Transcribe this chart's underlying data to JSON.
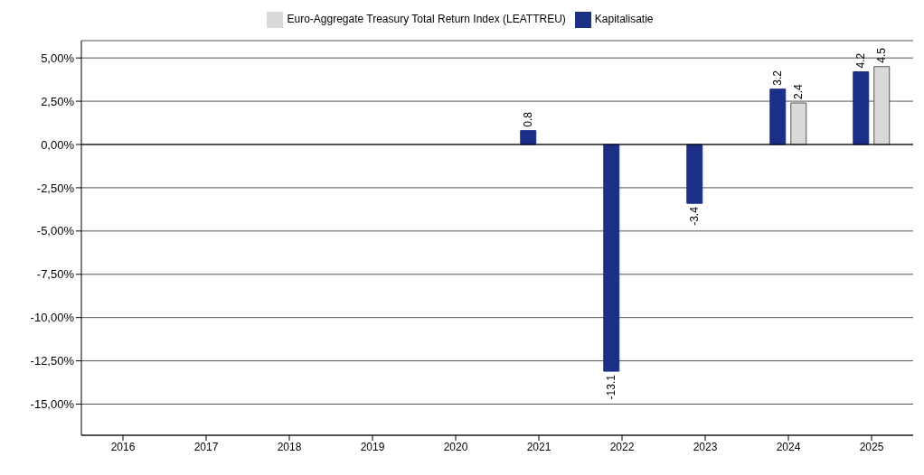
{
  "chart_data": {
    "type": "bar",
    "categories": [
      "2016",
      "2017",
      "2018",
      "2019",
      "2020",
      "2021",
      "2022",
      "2023",
      "2024",
      "2025"
    ],
    "series": [
      {
        "name": "Kapitalisatie",
        "color": "#1c2f87",
        "values": [
          null,
          null,
          null,
          null,
          null,
          0.8,
          -13.1,
          -3.4,
          3.2,
          4.2
        ]
      },
      {
        "name": "Euro-Aggregate Treasury Total Return Index (LEATTREU)",
        "color": "#d9d9d9",
        "values": [
          null,
          null,
          null,
          null,
          null,
          null,
          null,
          null,
          2.4,
          4.5
        ]
      }
    ],
    "ylim": [
      -16.8,
      6
    ],
    "yticks": [
      {
        "value": 5,
        "label": "5,00%"
      },
      {
        "value": 2.5,
        "label": "2,50%"
      },
      {
        "value": 0,
        "label": "0,00%"
      },
      {
        "value": -2.5,
        "label": "-2,50%"
      },
      {
        "value": -5,
        "label": "-5,00%"
      },
      {
        "value": -7.5,
        "label": "-7,50%"
      },
      {
        "value": -10,
        "label": "-10,00%"
      },
      {
        "value": -12.5,
        "label": "-12,50%"
      },
      {
        "value": -15,
        "label": "-15,00%"
      }
    ],
    "grid": "y",
    "legend": "top",
    "data_labels": true
  }
}
